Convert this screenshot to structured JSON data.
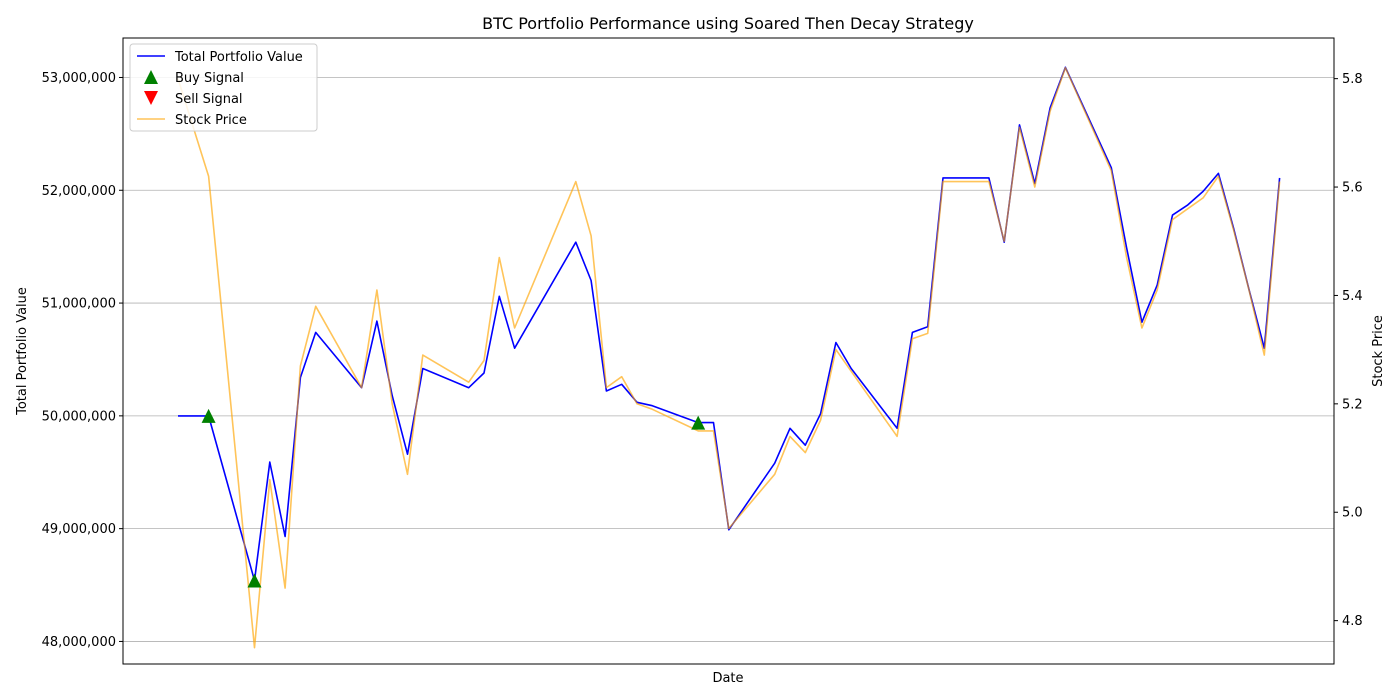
{
  "chart_data": {
    "type": "line",
    "title": "BTC Portfolio Performance using Soared Then Decay Strategy",
    "xlabel": "Date",
    "ylabel_left": "Total Portfolio Value",
    "ylabel_right": "Stock Price",
    "ylim_left": [
      47800000,
      53350000
    ],
    "ylim_right": [
      4.72,
      5.875
    ],
    "yticks_left": [
      48000000,
      49000000,
      50000000,
      51000000,
      52000000,
      53000000
    ],
    "yticks_left_labels": [
      "48,000,000",
      "49,000,000",
      "50,000,000",
      "51,000,000",
      "52,000,000",
      "53,000,000"
    ],
    "yticks_right": [
      4.8,
      5.0,
      5.2,
      5.4,
      5.6,
      5.8
    ],
    "yticks_right_labels": [
      "4.8",
      "5.0",
      "5.2",
      "5.4",
      "5.6",
      "5.8"
    ],
    "grid": true,
    "legend_position": "top-left",
    "colors": {
      "portfolio": "#0000ff",
      "buy": "#008000",
      "sell": "#ff0000",
      "price": "#ffa500"
    },
    "x_index": [
      0,
      2,
      5,
      6,
      7,
      8,
      9,
      12,
      13,
      14,
      15,
      16,
      19,
      20,
      21,
      22,
      26,
      27,
      28,
      29,
      30,
      31,
      34,
      35,
      36,
      39,
      40,
      41,
      42,
      43,
      44,
      47,
      48,
      49,
      50,
      53,
      54,
      55,
      56,
      57,
      58,
      61,
      62,
      63,
      64,
      65,
      66,
      67,
      68,
      69,
      70,
      71,
      72
    ],
    "series": [
      {
        "name": "Total Portfolio Value",
        "values": [
          50000000,
          50000000,
          48540000,
          49590000,
          48930000,
          50340000,
          50740000,
          50250000,
          50840000,
          50180000,
          49660000,
          50420000,
          50250000,
          50380000,
          51060000,
          50600000,
          51540000,
          51200000,
          50220000,
          50280000,
          50120000,
          50090000,
          49940000,
          49940000,
          48990000,
          49580000,
          49890000,
          49740000,
          50020000,
          50650000,
          50420000,
          49890000,
          50740000,
          50790000,
          52110000,
          52110000,
          51540000,
          52580000,
          52060000,
          52730000,
          53090000,
          52200000,
          51490000,
          50830000,
          51160000,
          51780000,
          51870000,
          51990000,
          52150000,
          51660000,
          51120000,
          50600000,
          52110000
        ],
        "style": "line"
      },
      {
        "name": "Stock Price",
        "values": [
          5.8,
          5.62,
          4.75,
          5.06,
          4.86,
          5.27,
          5.38,
          5.23,
          5.41,
          5.2,
          5.07,
          5.29,
          5.24,
          5.28,
          5.47,
          5.34,
          5.61,
          5.51,
          5.23,
          5.25,
          5.2,
          5.19,
          5.15,
          5.15,
          4.97,
          5.07,
          5.14,
          5.11,
          5.17,
          5.3,
          5.26,
          5.14,
          5.32,
          5.33,
          5.61,
          5.61,
          5.5,
          5.71,
          5.6,
          5.74,
          5.82,
          5.63,
          5.47,
          5.34,
          5.41,
          5.54,
          5.56,
          5.58,
          5.62,
          5.52,
          5.41,
          5.29,
          5.61
        ],
        "style": "line"
      },
      {
        "name": "Buy Signal",
        "x_index": [
          2,
          5,
          34
        ],
        "values": [
          50000000,
          48540000,
          49940000
        ],
        "style": "marker-up"
      },
      {
        "name": "Sell Signal",
        "x_index": [],
        "values": [],
        "style": "marker-down"
      }
    ]
  }
}
